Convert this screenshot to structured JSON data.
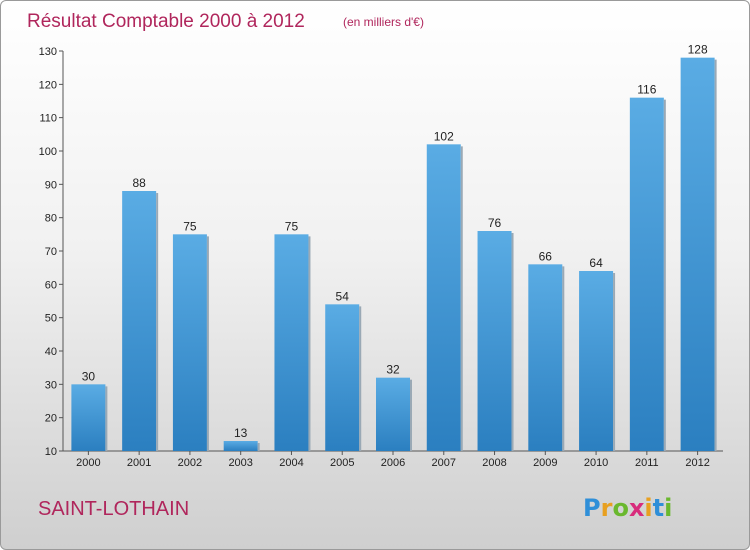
{
  "title": "Résultat Comptable 2000 à 2012",
  "subtitle": "(en milliers d'€)",
  "commune": "SAINT-LOTHAIN",
  "logo": {
    "letters": [
      "P",
      "r",
      "o",
      "x",
      "i",
      "t",
      "i"
    ],
    "colors": [
      "#2f8fd8",
      "#e8a020",
      "#6ab82e",
      "#d82c7c",
      "#e8a020",
      "#2f8fd8",
      "#6ab82e"
    ]
  },
  "colors": {
    "bar_light": "#5aace4",
    "bar_dark": "#2b7fc0"
  },
  "chart_data": {
    "type": "bar",
    "categories": [
      "2000",
      "2001",
      "2002",
      "2003",
      "2004",
      "2005",
      "2006",
      "2007",
      "2008",
      "2009",
      "2010",
      "2011",
      "2012"
    ],
    "values": [
      30,
      88,
      75,
      13,
      75,
      54,
      32,
      102,
      76,
      66,
      64,
      116,
      128
    ],
    "data_labels": [
      "30",
      "88",
      "75",
      "13",
      "75",
      "54",
      "32",
      "102",
      "76",
      "66",
      "64",
      "116",
      "128"
    ],
    "title": "Résultat Comptable 2000 à 2012",
    "xlabel": "",
    "ylabel": "",
    "ylim": [
      10,
      130
    ],
    "yticks": [
      "10",
      "20",
      "30",
      "40",
      "50",
      "60",
      "70",
      "80",
      "90",
      "100",
      "110",
      "120",
      "130"
    ],
    "grid": false,
    "legend": "none"
  }
}
